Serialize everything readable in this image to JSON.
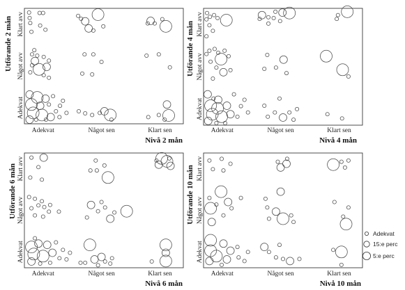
{
  "legend": [
    "Adekvat",
    "15:e perc",
    "5:e perc"
  ],
  "chart_data": [
    {
      "type": "scatter",
      "ylabel": "Utförande 2 mån",
      "xlabel": "Nivå 2 mån",
      "x_categories": [
        "Adekvat",
        "Något sen",
        "Klart sen"
      ],
      "y_categories": [
        "Adekvat",
        "Något avv",
        "Klart avv"
      ],
      "xlim": [
        0.68,
        3.4
      ],
      "ylim": [
        0.62,
        3.38
      ],
      "points": [
        [
          0.76,
          3.28,
          0
        ],
        [
          0.94,
          3.27,
          0
        ],
        [
          1.0,
          3.27,
          0
        ],
        [
          0.77,
          3.15,
          0
        ],
        [
          0.78,
          3.03,
          0
        ],
        [
          0.95,
          2.97,
          0
        ],
        [
          1.04,
          2.87,
          0
        ],
        [
          0.8,
          2.82,
          0
        ],
        [
          1.94,
          3.23,
          2
        ],
        [
          1.72,
          3.07,
          1
        ],
        [
          1.78,
          2.9,
          1
        ],
        [
          1.86,
          2.85,
          0
        ],
        [
          2.03,
          2.95,
          0
        ],
        [
          1.65,
          3.13,
          0
        ],
        [
          1.6,
          3.2,
          0
        ],
        [
          2.84,
          3.08,
          1
        ],
        [
          3.04,
          3.12,
          0
        ],
        [
          3.1,
          2.95,
          2
        ],
        [
          2.91,
          3.02,
          0
        ],
        [
          2.79,
          3.02,
          0
        ],
        [
          0.81,
          2.28,
          0
        ],
        [
          0.9,
          2.25,
          0
        ],
        [
          1.01,
          2.22,
          0
        ],
        [
          1.1,
          2.13,
          0
        ],
        [
          0.86,
          2.12,
          1
        ],
        [
          0.81,
          2.02,
          0
        ],
        [
          0.93,
          1.92,
          2
        ],
        [
          1.01,
          1.78,
          0
        ],
        [
          1.1,
          1.72,
          0
        ],
        [
          0.78,
          1.85,
          0
        ],
        [
          1.06,
          1.98,
          1
        ],
        [
          0.85,
          2.38,
          0
        ],
        [
          1.71,
          2.28,
          0
        ],
        [
          1.86,
          2.28,
          0
        ],
        [
          2.0,
          2.1,
          0
        ],
        [
          1.67,
          1.82,
          0
        ],
        [
          1.84,
          1.8,
          0
        ],
        [
          2.77,
          2.25,
          0
        ],
        [
          2.98,
          2.28,
          0
        ],
        [
          3.17,
          1.97,
          0
        ],
        [
          0.77,
          1.32,
          1
        ],
        [
          0.9,
          1.25,
          2
        ],
        [
          1.04,
          1.22,
          1
        ],
        [
          0.8,
          1.08,
          2
        ],
        [
          0.95,
          1.05,
          1
        ],
        [
          1.1,
          1.08,
          0
        ],
        [
          0.83,
          0.88,
          2
        ],
        [
          0.98,
          0.83,
          2
        ],
        [
          1.13,
          0.78,
          1
        ],
        [
          0.77,
          0.72,
          1
        ],
        [
          1.22,
          0.92,
          0
        ],
        [
          1.28,
          0.78,
          0
        ],
        [
          1.34,
          1.17,
          0
        ],
        [
          1.17,
          1.28,
          0
        ],
        [
          0.88,
          0.72,
          0
        ],
        [
          1.05,
          0.72,
          0
        ],
        [
          1.29,
          1.05,
          0
        ],
        [
          1.4,
          0.88,
          0
        ],
        [
          1.61,
          0.92,
          0
        ],
        [
          1.72,
          0.87,
          0
        ],
        [
          1.84,
          0.83,
          0
        ],
        [
          1.97,
          0.88,
          0
        ],
        [
          2.05,
          0.92,
          1
        ],
        [
          2.15,
          0.83,
          2
        ],
        [
          2.17,
          0.72,
          0
        ],
        [
          2.8,
          0.78,
          0
        ],
        [
          2.98,
          0.83,
          0
        ],
        [
          3.12,
          1.08,
          1
        ],
        [
          3.15,
          0.82,
          2
        ],
        [
          3.08,
          0.72,
          0
        ]
      ]
    },
    {
      "type": "scatter",
      "ylabel": "Utförande 4 mån",
      "xlabel": "Nivå 4 mån",
      "x_categories": [
        "Adekvat",
        "Något sen",
        "Klart sen"
      ],
      "y_categories": [
        "Adekvat",
        "Något avv",
        "Klart avv"
      ],
      "xlim": [
        0.68,
        3.4
      ],
      "ylim": [
        0.62,
        3.38
      ],
      "points": [
        [
          0.74,
          3.27,
          0
        ],
        [
          0.79,
          3.18,
          0
        ],
        [
          0.86,
          3.22,
          0
        ],
        [
          0.73,
          3.12,
          0
        ],
        [
          0.78,
          2.98,
          0
        ],
        [
          0.92,
          3.15,
          0
        ],
        [
          1.07,
          3.1,
          2
        ],
        [
          0.84,
          2.85,
          0
        ],
        [
          0.73,
          2.72,
          0
        ],
        [
          1.68,
          3.22,
          1
        ],
        [
          1.79,
          3.17,
          0
        ],
        [
          1.64,
          3.13,
          0
        ],
        [
          1.91,
          3.3,
          0
        ],
        [
          2.03,
          3.28,
          1
        ],
        [
          2.15,
          3.27,
          2
        ],
        [
          1.99,
          3.08,
          0
        ],
        [
          1.79,
          3.02,
          0
        ],
        [
          1.88,
          3.15,
          0
        ],
        [
          3.14,
          3.3,
          2
        ],
        [
          2.96,
          3.13,
          0
        ],
        [
          2.98,
          3.22,
          0
        ],
        [
          0.78,
          2.38,
          0
        ],
        [
          0.87,
          2.42,
          0
        ],
        [
          0.93,
          2.33,
          0
        ],
        [
          1.04,
          2.38,
          0
        ],
        [
          0.98,
          2.18,
          2
        ],
        [
          0.8,
          2.12,
          0
        ],
        [
          0.9,
          1.98,
          0
        ],
        [
          1.02,
          1.87,
          1
        ],
        [
          1.14,
          1.92,
          0
        ],
        [
          0.84,
          1.72,
          0
        ],
        [
          0.73,
          2.3,
          0
        ],
        [
          1.11,
          2.25,
          0
        ],
        [
          1.77,
          2.28,
          0
        ],
        [
          2.05,
          2.17,
          1
        ],
        [
          1.92,
          1.98,
          0
        ],
        [
          2.1,
          1.85,
          0
        ],
        [
          1.72,
          1.95,
          0
        ],
        [
          2.78,
          2.25,
          2
        ],
        [
          3.06,
          1.93,
          2
        ],
        [
          3.16,
          1.77,
          0
        ],
        [
          0.75,
          1.35,
          1
        ],
        [
          0.85,
          1.25,
          0
        ],
        [
          0.93,
          1.22,
          1
        ],
        [
          0.8,
          1.08,
          2
        ],
        [
          0.92,
          1.02,
          2
        ],
        [
          1.08,
          1.08,
          1
        ],
        [
          0.83,
          0.88,
          2
        ],
        [
          0.99,
          0.82,
          2
        ],
        [
          1.14,
          0.88,
          1
        ],
        [
          1.26,
          0.82,
          0
        ],
        [
          1.32,
          1.07,
          0
        ],
        [
          0.76,
          0.72,
          1
        ],
        [
          0.9,
          0.67,
          0
        ],
        [
          1.05,
          0.67,
          0
        ],
        [
          1.38,
          1.22,
          0
        ],
        [
          1.2,
          1.35,
          0
        ],
        [
          1.44,
          0.92,
          0
        ],
        [
          1.72,
          1.08,
          0
        ],
        [
          1.78,
          0.82,
          0
        ],
        [
          1.9,
          0.92,
          0
        ],
        [
          2.04,
          0.8,
          1
        ],
        [
          2.15,
          0.92,
          0
        ],
        [
          2.28,
          1.0,
          0
        ],
        [
          2.22,
          0.75,
          0
        ],
        [
          1.98,
          1.25,
          0
        ],
        [
          2.8,
          0.88,
          0
        ],
        [
          3.05,
          0.78,
          0
        ]
      ]
    },
    {
      "type": "scatter",
      "ylabel": "Utförande 6 mån",
      "xlabel": "Nivå 6 mån",
      "x_categories": [
        "Adekvat",
        "Något sen",
        "Klart sen"
      ],
      "y_categories": [
        "Adekvat",
        "Något avv",
        "Klart avv"
      ],
      "xlim": [
        0.68,
        3.4
      ],
      "ylim": [
        0.62,
        3.38
      ],
      "points": [
        [
          0.8,
          3.27,
          0
        ],
        [
          1.01,
          3.27,
          1
        ],
        [
          0.92,
          3.04,
          0
        ],
        [
          0.78,
          2.79,
          0
        ],
        [
          0.98,
          2.74,
          0
        ],
        [
          1.9,
          3.2,
          0
        ],
        [
          2.05,
          3.08,
          0
        ],
        [
          1.92,
          2.96,
          0
        ],
        [
          2.11,
          2.79,
          2
        ],
        [
          1.81,
          2.96,
          0
        ],
        [
          3.03,
          3.25,
          2
        ],
        [
          3.12,
          3.18,
          2
        ],
        [
          2.98,
          3.1,
          1
        ],
        [
          3.18,
          3.07,
          1
        ],
        [
          2.94,
          3.2,
          0
        ],
        [
          3.16,
          3.25,
          0
        ],
        [
          0.76,
          2.32,
          0
        ],
        [
          0.86,
          2.28,
          0
        ],
        [
          0.98,
          2.22,
          0
        ],
        [
          0.92,
          2.12,
          0
        ],
        [
          1.02,
          2.08,
          0
        ],
        [
          0.8,
          2.05,
          0
        ],
        [
          1.1,
          1.97,
          0
        ],
        [
          1.27,
          1.97,
          0
        ],
        [
          0.86,
          1.88,
          0
        ],
        [
          1.0,
          1.85,
          0
        ],
        [
          1.12,
          2.13,
          0
        ],
        [
          1.82,
          2.13,
          1
        ],
        [
          1.94,
          1.98,
          0
        ],
        [
          2.06,
          2.07,
          0
        ],
        [
          2.15,
          1.8,
          1
        ],
        [
          2.0,
          2.2,
          0
        ],
        [
          2.22,
          1.95,
          0
        ],
        [
          1.75,
          1.83,
          0
        ],
        [
          2.43,
          1.98,
          2
        ],
        [
          0.8,
          1.12,
          2
        ],
        [
          0.92,
          1.2,
          1
        ],
        [
          1.07,
          1.17,
          1
        ],
        [
          0.84,
          0.95,
          2
        ],
        [
          1.0,
          0.9,
          2
        ],
        [
          1.16,
          0.98,
          1
        ],
        [
          0.8,
          0.77,
          1
        ],
        [
          0.95,
          0.72,
          0
        ],
        [
          1.12,
          0.74,
          0
        ],
        [
          1.28,
          0.85,
          0
        ],
        [
          1.34,
          1.05,
          0
        ],
        [
          1.22,
          1.23,
          0
        ],
        [
          1.4,
          0.82,
          0
        ],
        [
          1.46,
          0.98,
          0
        ],
        [
          0.86,
          1.33,
          0
        ],
        [
          1.8,
          1.17,
          2
        ],
        [
          1.64,
          0.74,
          0
        ],
        [
          1.72,
          0.74,
          0
        ],
        [
          1.88,
          0.82,
          1
        ],
        [
          2.0,
          0.88,
          1
        ],
        [
          2.06,
          0.77,
          0
        ],
        [
          2.15,
          0.72,
          0
        ],
        [
          1.94,
          0.68,
          0
        ],
        [
          2.18,
          0.85,
          0
        ],
        [
          3.1,
          1.17,
          2
        ],
        [
          3.1,
          0.98,
          1
        ],
        [
          2.86,
          0.77,
          0
        ],
        [
          3.1,
          0.78,
          2
        ]
      ]
    },
    {
      "type": "scatter",
      "ylabel": "Utförande 10 mån",
      "xlabel": "Nivå 10 mån",
      "x_categories": [
        "Adekvat",
        "Något sen",
        "Klart sen"
      ],
      "y_categories": [
        "Adekvat",
        "Något avv",
        "Klart avv"
      ],
      "xlim": [
        0.68,
        3.4
      ],
      "ylim": [
        0.62,
        3.38
      ],
      "points": [
        [
          0.78,
          3.2,
          0
        ],
        [
          0.99,
          3.24,
          0
        ],
        [
          1.14,
          3.12,
          0
        ],
        [
          0.84,
          2.99,
          0
        ],
        [
          1.02,
          2.96,
          0
        ],
        [
          2.0,
          3.03,
          1
        ],
        [
          2.1,
          3.12,
          1
        ],
        [
          1.95,
          3.17,
          0
        ],
        [
          2.11,
          3.24,
          0
        ],
        [
          2.9,
          3.1,
          2
        ],
        [
          3.04,
          3.17,
          0
        ],
        [
          3.16,
          3.2,
          0
        ],
        [
          3.1,
          3.03,
          0
        ],
        [
          0.8,
          2.05,
          2
        ],
        [
          0.98,
          2.45,
          2
        ],
        [
          1.1,
          2.2,
          1
        ],
        [
          0.78,
          2.3,
          0
        ],
        [
          0.9,
          2.14,
          0
        ],
        [
          1.16,
          2.05,
          0
        ],
        [
          1.32,
          2.3,
          0
        ],
        [
          0.82,
          1.72,
          1
        ],
        [
          1.02,
          1.88,
          0
        ],
        [
          2.0,
          2.45,
          1
        ],
        [
          1.74,
          2.28,
          0
        ],
        [
          1.77,
          2.07,
          0
        ],
        [
          1.92,
          1.97,
          1
        ],
        [
          2.04,
          1.8,
          2
        ],
        [
          2.18,
          1.88,
          0
        ],
        [
          2.22,
          1.72,
          0
        ],
        [
          1.8,
          1.8,
          0
        ],
        [
          2.92,
          2.2,
          0
        ],
        [
          3.16,
          2.07,
          0
        ],
        [
          3.07,
          1.85,
          0
        ],
        [
          3.12,
          1.67,
          2
        ],
        [
          0.8,
          1.28,
          2
        ],
        [
          0.8,
          1.03,
          2
        ],
        [
          0.9,
          0.9,
          2
        ],
        [
          0.78,
          0.78,
          1
        ],
        [
          1.02,
          1.2,
          1
        ],
        [
          1.14,
          1.03,
          1
        ],
        [
          1.28,
          0.87,
          0
        ],
        [
          1.08,
          0.82,
          1
        ],
        [
          1.26,
          1.12,
          0
        ],
        [
          1.44,
          1.0,
          0
        ],
        [
          1.38,
          0.78,
          0
        ],
        [
          0.99,
          0.69,
          0
        ],
        [
          1.72,
          1.12,
          1
        ],
        [
          1.8,
          1.0,
          0
        ],
        [
          1.92,
          0.87,
          0
        ],
        [
          2.04,
          0.83,
          0
        ],
        [
          2.16,
          0.78,
          1
        ],
        [
          2.32,
          0.83,
          0
        ],
        [
          1.98,
          1.17,
          0
        ],
        [
          2.9,
          1.05,
          0
        ],
        [
          3.04,
          1.0,
          2
        ],
        [
          3.04,
          0.69,
          0
        ]
      ]
    }
  ]
}
